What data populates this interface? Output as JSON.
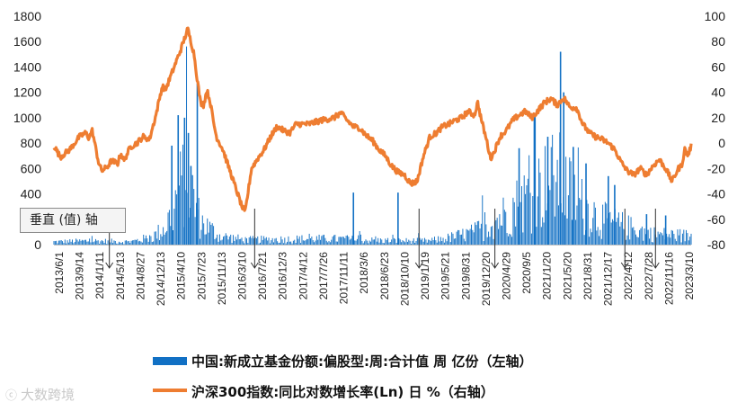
{
  "chart_data": {
    "type": "bar+line",
    "left_axis": {
      "ticks": [
        0,
        200,
        400,
        600,
        800,
        1000,
        1200,
        1400,
        1600,
        1800
      ],
      "ylim": [
        0,
        1800
      ]
    },
    "right_axis": {
      "ticks": [
        -80,
        -60,
        -40,
        -20,
        0,
        20,
        40,
        60,
        80,
        100
      ],
      "ylim": [
        -80,
        100
      ]
    },
    "x_tick_labels": [
      "2013/6/1",
      "2013/9/14",
      "2014/1/11",
      "2014/5/13",
      "2014/8/27",
      "2014/12/13",
      "2015/4/10",
      "2015/7/23",
      "2015/11/13",
      "2016/3/10",
      "2016/7/21",
      "2016/12/3",
      "2017/4/12",
      "2017/7/26",
      "2017/11/11",
      "2018/3/6",
      "2018/6/23",
      "2018/10/10",
      "2019/1/19",
      "2019/5/21",
      "2019/8/31",
      "2019/12/20",
      "2020/4/29",
      "2020/9/5",
      "2021/1/20",
      "2021/5/20",
      "2021/8/31",
      "2021/12/17",
      "2022/4/12",
      "2022/7/28",
      "2022/11/16",
      "2023/3/10"
    ],
    "series": [
      {
        "name": "中国:新成立基金份额:偏股型:周:合计值 周 亿份（左轴）",
        "type": "bar",
        "axis": "left",
        "color": "#1170C4",
        "profile": [
          [
            0,
            30
          ],
          [
            0.06,
            40
          ],
          [
            0.12,
            30
          ],
          [
            0.155,
            80
          ],
          [
            0.175,
            180
          ],
          [
            0.19,
            420
          ],
          [
            0.205,
            700
          ],
          [
            0.215,
            560
          ],
          [
            0.23,
            240
          ],
          [
            0.26,
            90
          ],
          [
            0.3,
            50
          ],
          [
            0.35,
            55
          ],
          [
            0.4,
            60
          ],
          [
            0.45,
            60
          ],
          [
            0.5,
            45
          ],
          [
            0.55,
            40
          ],
          [
            0.59,
            40
          ],
          [
            0.62,
            70
          ],
          [
            0.66,
            130
          ],
          [
            0.7,
            280
          ],
          [
            0.74,
            480
          ],
          [
            0.77,
            620
          ],
          [
            0.79,
            700
          ],
          [
            0.82,
            450
          ],
          [
            0.86,
            260
          ],
          [
            0.9,
            180
          ],
          [
            0.94,
            110
          ],
          [
            1.0,
            90
          ]
        ],
        "spikes": [
          [
            0.185,
            780
          ],
          [
            0.195,
            1020
          ],
          [
            0.205,
            1000
          ],
          [
            0.211,
            880
          ],
          [
            0.225,
            1270
          ],
          [
            0.215,
            620
          ],
          [
            0.47,
            410
          ],
          [
            0.54,
            410
          ],
          [
            0.73,
            760
          ],
          [
            0.755,
            1010
          ],
          [
            0.775,
            850
          ],
          [
            0.795,
            1520
          ],
          [
            0.8,
            1200
          ],
          [
            0.815,
            770
          ],
          [
            0.835,
            640
          ],
          [
            0.87,
            540
          ],
          [
            0.88,
            470
          ],
          [
            0.93,
            240
          ],
          [
            0.96,
            230
          ]
        ]
      },
      {
        "name": "沪深300指数:同比对数增长率(Ln) 日 %（右轴）",
        "type": "line",
        "axis": "right",
        "color": "#EE7D31",
        "points": [
          [
            0,
            -2
          ],
          [
            0.01,
            -11
          ],
          [
            0.025,
            -5
          ],
          [
            0.04,
            5
          ],
          [
            0.05,
            8
          ],
          [
            0.055,
            4
          ],
          [
            0.06,
            10
          ],
          [
            0.07,
            -15
          ],
          [
            0.075,
            -22
          ],
          [
            0.085,
            -18
          ],
          [
            0.09,
            -14
          ],
          [
            0.1,
            -16
          ],
          [
            0.105,
            -8
          ],
          [
            0.11,
            -14
          ],
          [
            0.12,
            -3
          ],
          [
            0.13,
            0
          ],
          [
            0.14,
            5
          ],
          [
            0.15,
            3
          ],
          [
            0.16,
            22
          ],
          [
            0.17,
            45
          ],
          [
            0.175,
            42
          ],
          [
            0.185,
            55
          ],
          [
            0.2,
            75
          ],
          [
            0.21,
            90
          ],
          [
            0.22,
            70
          ],
          [
            0.225,
            50
          ],
          [
            0.23,
            32
          ],
          [
            0.235,
            30
          ],
          [
            0.24,
            42
          ],
          [
            0.245,
            33
          ],
          [
            0.25,
            18
          ],
          [
            0.255,
            5
          ],
          [
            0.265,
            -5
          ],
          [
            0.275,
            -20
          ],
          [
            0.285,
            -35
          ],
          [
            0.295,
            -50
          ],
          [
            0.3,
            -55
          ],
          [
            0.31,
            -20
          ],
          [
            0.32,
            -12
          ],
          [
            0.33,
            -5
          ],
          [
            0.34,
            5
          ],
          [
            0.35,
            13
          ],
          [
            0.36,
            10
          ],
          [
            0.37,
            8
          ],
          [
            0.38,
            15
          ],
          [
            0.4,
            15
          ],
          [
            0.42,
            18
          ],
          [
            0.44,
            20
          ],
          [
            0.45,
            24
          ],
          [
            0.46,
            18
          ],
          [
            0.47,
            13
          ],
          [
            0.48,
            12
          ],
          [
            0.49,
            6
          ],
          [
            0.5,
            2
          ],
          [
            0.51,
            -5
          ],
          [
            0.52,
            -10
          ],
          [
            0.53,
            -18
          ],
          [
            0.54,
            -23
          ],
          [
            0.55,
            -25
          ],
          [
            0.56,
            -32
          ],
          [
            0.57,
            -30
          ],
          [
            0.58,
            -10
          ],
          [
            0.59,
            5
          ],
          [
            0.6,
            8
          ],
          [
            0.61,
            13
          ],
          [
            0.62,
            15
          ],
          [
            0.63,
            18
          ],
          [
            0.64,
            20
          ],
          [
            0.65,
            25
          ],
          [
            0.66,
            22
          ],
          [
            0.665,
            32
          ],
          [
            0.67,
            20
          ],
          [
            0.675,
            10
          ],
          [
            0.68,
            0
          ],
          [
            0.685,
            -12
          ],
          [
            0.69,
            -8
          ],
          [
            0.7,
            5
          ],
          [
            0.71,
            10
          ],
          [
            0.72,
            18
          ],
          [
            0.73,
            22
          ],
          [
            0.74,
            25
          ],
          [
            0.75,
            20
          ],
          [
            0.76,
            26
          ],
          [
            0.77,
            32
          ],
          [
            0.78,
            35
          ],
          [
            0.79,
            30
          ],
          [
            0.8,
            36
          ],
          [
            0.81,
            28
          ],
          [
            0.82,
            28
          ],
          [
            0.83,
            15
          ],
          [
            0.84,
            8
          ],
          [
            0.85,
            5
          ],
          [
            0.86,
            3
          ],
          [
            0.87,
            0
          ],
          [
            0.88,
            -5
          ],
          [
            0.89,
            -15
          ],
          [
            0.9,
            -22
          ],
          [
            0.91,
            -25
          ],
          [
            0.92,
            -20
          ],
          [
            0.93,
            -25
          ],
          [
            0.94,
            -18
          ],
          [
            0.95,
            -13
          ],
          [
            0.96,
            -20
          ],
          [
            0.965,
            -25
          ],
          [
            0.97,
            -30
          ],
          [
            0.975,
            -25
          ],
          [
            0.98,
            -20
          ],
          [
            0.985,
            -18
          ],
          [
            0.99,
            -5
          ],
          [
            0.995,
            -10
          ],
          [
            1.0,
            -2
          ]
        ]
      }
    ],
    "annotation_label": "垂直 (值) 轴"
  },
  "legend": {
    "bar_label": "中国:新成立基金份额:偏股型:周:合计值 周 亿份（左轴）",
    "line_label": "沪深300指数:同比对数增长率(Ln) 日 %（右轴）"
  },
  "watermark": {
    "text": "大数跨境",
    "icon": "cc-icon"
  },
  "colors": {
    "bar": "#1170C4",
    "line": "#EE7D31",
    "axis": "#bfbfbf"
  }
}
